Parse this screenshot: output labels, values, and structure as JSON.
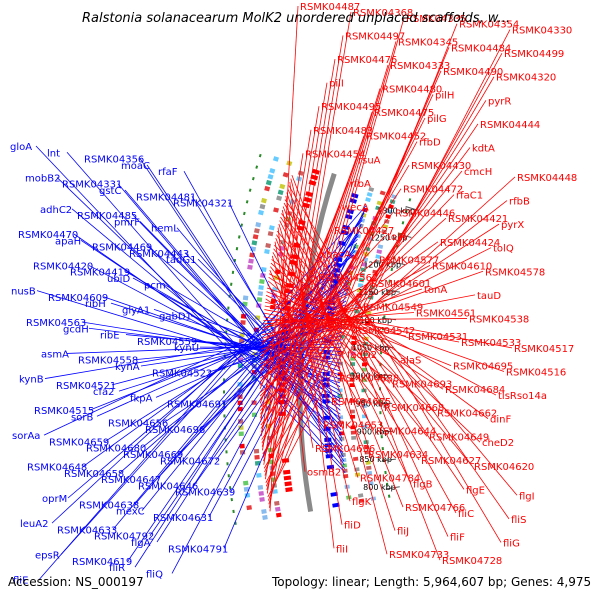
{
  "title": "Ralstonia solanacearum MolK2 unordered unplaced scaffolds, w...",
  "footer": {
    "accession": "Accession: NS_000197",
    "summary": "Topology: linear; Length: 5,964,607 bp; Genes: 4,975"
  },
  "colors": {
    "forward": "#ff0000",
    "reverse": "#0000ff",
    "backbone": "#8a8a8a",
    "ticks": "#2a8a2a"
  },
  "ruler_ticks": [
    "800 kbp",
    "850 kbp",
    "900 kbp",
    "950 kbp",
    "1000 kbp",
    "1050 kbp",
    "1100 kbp",
    "1150 kbp",
    "1200 kbp",
    "1250 kbp",
    "1300 kbp"
  ],
  "reverse_labels": [
    "gloA",
    "lnt",
    "RSMK04356",
    "moaC",
    "rfaF",
    "mobB2",
    "RSMK04331",
    "gstC",
    "RSMK04481",
    "RSMK04321",
    "adhC2",
    "RSMK04485",
    "pmrF",
    "hemL",
    "RSMK04470",
    "apaH",
    "RSMK04469",
    "RSMK04443",
    "tadG1",
    "RSMK04420",
    "RSMK04419",
    "ubiD",
    "pcm",
    "nusB",
    "RSMK04609",
    "ribH",
    "glyA1",
    "gabD1",
    "RSMK04563",
    "gcdH",
    "ribE",
    "RSMK04559",
    "kynU",
    "asmA",
    "RSMK04558",
    "kynA",
    "RSMK04522",
    "kynB",
    "RSMK04521",
    "cfa2",
    "fkpA",
    "RSMK04691",
    "RSMK04515",
    "sorB",
    "RSMK04656",
    "RSMK04696",
    "sorAa",
    "RSMK04659",
    "RSMK04680",
    "RSMK04669",
    "RSMK04672",
    "RSMK04648",
    "RSMK04658",
    "RSMK04647",
    "RSMK04646",
    "RSMK04639",
    "oprM",
    "RSMK04638",
    "mexC",
    "RSMK04631",
    "leuA2",
    "RSMK04633",
    "RSMK04792",
    "flgA",
    "RSMK04791",
    "epsR",
    "RSMK04619",
    "fliR",
    "fliQ",
    "fliE"
  ],
  "forward_labels": [
    "RSMK04487",
    "RSMK04368",
    "RSMK04335",
    "RSMK04354",
    "RSMK04330",
    "RSMK04497",
    "RSMK04345",
    "RSMK04484",
    "RSMK04499",
    "RSMK04476",
    "RSMK04333",
    "RSMK04490",
    "RSMK04320",
    "pilI",
    "RSMK04480",
    "pilH",
    "pyrR",
    "RSMK04495",
    "RSMK04475",
    "pilG",
    "RSMK04444",
    "RSMK04483",
    "RSMK04452",
    "rfbD",
    "kdtA",
    "RSMK04454",
    "rsuA",
    "RSMK04430",
    "cmcH",
    "RSMK04448",
    "rfbA",
    "RSMK04472",
    "rfaC1",
    "rfbB",
    "wecA",
    "RSMK04446",
    "RSMK04421",
    "pyrX",
    "RSMK04427",
    "tolR",
    "RSMK04424",
    "tolQ",
    "bacA",
    "RSMK04577",
    "RSMK04610",
    "RSMK04578",
    "RSMK04562",
    "RSMK04601",
    "tonA",
    "tauD",
    "tonA",
    "RSMK04549",
    "RSMK04561",
    "RSMK04538",
    "RSMK04552",
    "RSMK04542",
    "RSMK04531",
    "RSMK04533",
    "RSMK04517",
    "fadD2",
    "alaS",
    "RSMK04695",
    "RSMK04516",
    "RSMK04688",
    "RSMK04693",
    "RSMK04684",
    "tlsRso14a",
    "RSMK04675",
    "RSMK04668",
    "RSMK04662",
    "dinF",
    "RSMK04653",
    "RSMK04644",
    "RSMK04649",
    "cheD2",
    "RSMK04636",
    "RSMK04634",
    "RSMK04627",
    "RSMK04620",
    "osmB2",
    "RSMK04784",
    "flgB",
    "flgE",
    "flgI",
    "flgK",
    "RSMK04766",
    "fliC",
    "fliS",
    "fliD",
    "fliJ",
    "fliF",
    "fliG",
    "fliI",
    "RSMK04733",
    "RSMK04728"
  ]
}
